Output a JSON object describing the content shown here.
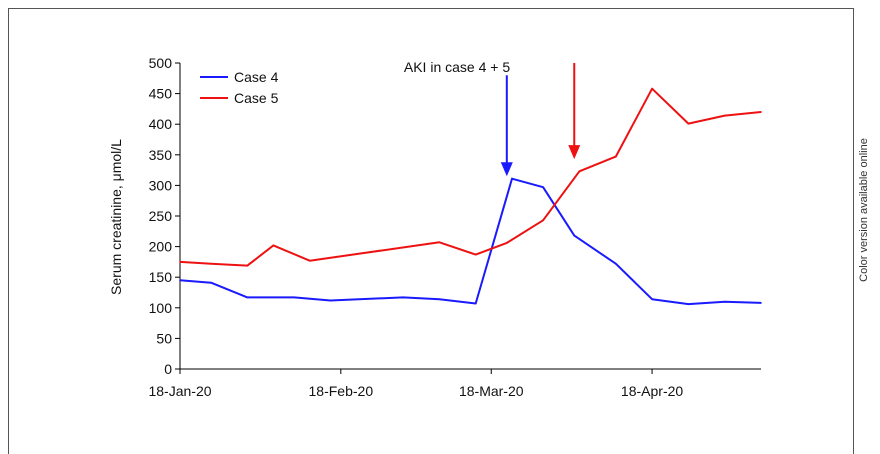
{
  "side_note": "Color version available online",
  "chart_data": {
    "type": "line",
    "title": "",
    "xlabel": "",
    "ylabel": "Serum creatinine, μmol/L",
    "ylim": [
      0,
      500
    ],
    "yticks": [
      0,
      50,
      100,
      150,
      200,
      250,
      300,
      350,
      400,
      450,
      500
    ],
    "xlim_days": [
      0,
      90
    ],
    "xticks": [
      {
        "label": "18-Jan-20",
        "day": 0
      },
      {
        "label": "18-Feb-20",
        "day": 31
      },
      {
        "label": "18-Mar-20",
        "day": 60
      },
      {
        "label": "18-Apr-20",
        "day": 91
      }
    ],
    "legend": {
      "position": "top-left"
    },
    "series": [
      {
        "name": "Case 4",
        "color": "#1a1aff",
        "points": [
          {
            "x": "2020-01-18",
            "y": 145
          },
          {
            "x": "2020-01-24",
            "y": 141
          },
          {
            "x": "2020-01-31",
            "y": 117
          },
          {
            "x": "2020-02-09",
            "y": 117
          },
          {
            "x": "2020-02-16",
            "y": 112
          },
          {
            "x": "2020-03-01",
            "y": 117
          },
          {
            "x": "2020-03-08",
            "y": 114
          },
          {
            "x": "2020-03-15",
            "y": 107
          },
          {
            "x": "2020-03-22",
            "y": 311
          },
          {
            "x": "2020-03-28",
            "y": 297
          },
          {
            "x": "2020-04-03",
            "y": 218
          },
          {
            "x": "2020-04-11",
            "y": 172
          },
          {
            "x": "2020-04-18",
            "y": 114
          },
          {
            "x": "2020-04-25",
            "y": 106
          },
          {
            "x": "2020-05-02",
            "y": 110
          },
          {
            "x": "2020-05-09",
            "y": 108
          }
        ]
      },
      {
        "name": "Case 5",
        "color": "#ee1111",
        "points": [
          {
            "x": "2020-01-18",
            "y": 175
          },
          {
            "x": "2020-01-24",
            "y": 172
          },
          {
            "x": "2020-01-31",
            "y": 169
          },
          {
            "x": "2020-02-05",
            "y": 202
          },
          {
            "x": "2020-02-12",
            "y": 177
          },
          {
            "x": "2020-03-08",
            "y": 207
          },
          {
            "x": "2020-03-15",
            "y": 187
          },
          {
            "x": "2020-03-21",
            "y": 206
          },
          {
            "x": "2020-03-28",
            "y": 243
          },
          {
            "x": "2020-04-04",
            "y": 323
          },
          {
            "x": "2020-04-11",
            "y": 347
          },
          {
            "x": "2020-04-18",
            "y": 458
          },
          {
            "x": "2020-04-25",
            "y": 401
          },
          {
            "x": "2020-05-02",
            "y": 414
          },
          {
            "x": "2020-05-09",
            "y": 420
          }
        ]
      }
    ],
    "annotations": [
      {
        "text": "AKI in case 4 + 5"
      },
      {
        "type": "arrow",
        "series": "Case 4",
        "color": "#1a1aff",
        "x": "2020-03-21",
        "y_from": 480,
        "y_to": 315
      },
      {
        "type": "arrow",
        "series": "Case 5",
        "color": "#ee1111",
        "x": "2020-04-03",
        "y_from": 500,
        "y_to": 343
      }
    ]
  }
}
